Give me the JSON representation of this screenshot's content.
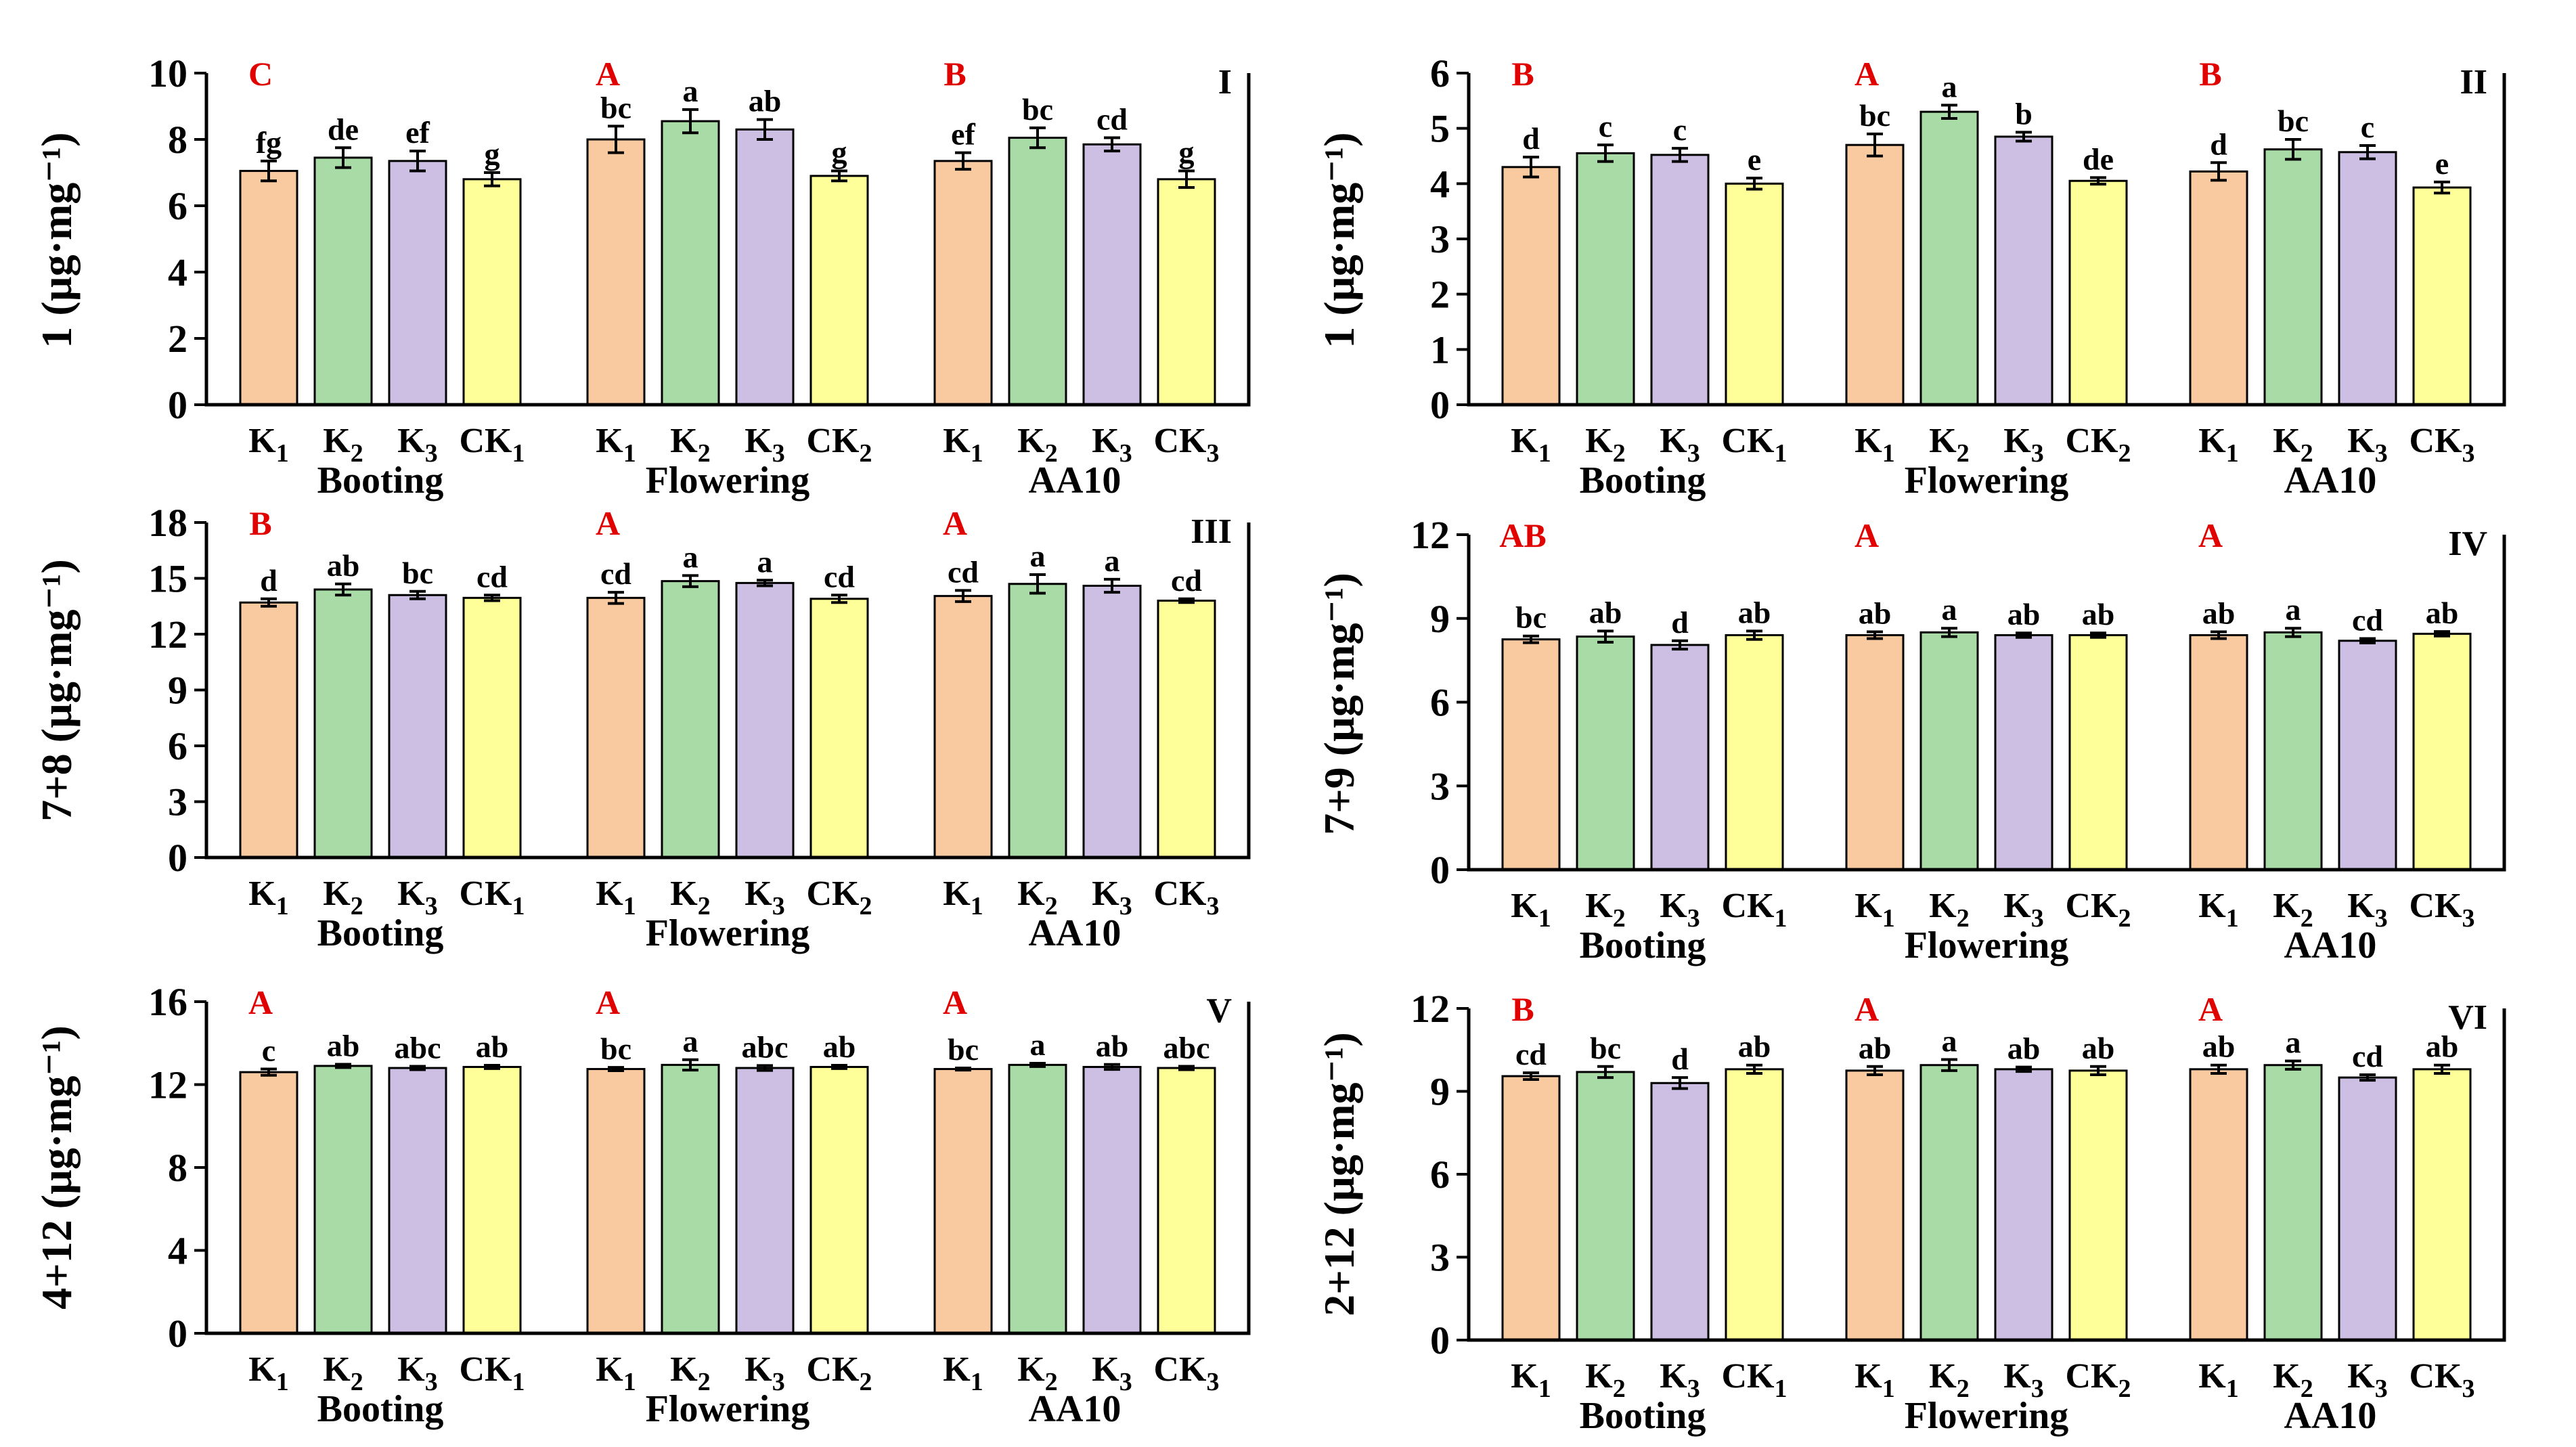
{
  "colors": {
    "K1": "#f9c9a0",
    "K2": "#a9dba6",
    "K3": "#cdbfe3",
    "CK": "#ffff99",
    "group_letter": "#e00000"
  },
  "chart_data": [
    {
      "type": "bar",
      "panel": "I",
      "ylabel": "1 (µg·mg⁻¹)",
      "ylim": [
        0,
        10
      ],
      "yticks": [
        "0",
        "2",
        "4",
        "6",
        "8",
        "10"
      ],
      "stages": [
        {
          "name": "Booting",
          "group_letter": "C",
          "categories": [
            "K1",
            "K2",
            "K3",
            "CK1"
          ],
          "labels": [
            "K₁",
            "K₂",
            "K₃",
            "CK₁"
          ],
          "values": [
            7.05,
            7.45,
            7.35,
            6.8
          ],
          "errors": [
            0.3,
            0.3,
            0.3,
            0.2
          ],
          "sig": [
            "fg",
            "de",
            "ef",
            "g"
          ]
        },
        {
          "name": "Flowering",
          "group_letter": "A",
          "categories": [
            "K1",
            "K2",
            "K3",
            "CK2"
          ],
          "labels": [
            "K₁",
            "K₂",
            "K₃",
            "CK₂"
          ],
          "values": [
            8.0,
            8.55,
            8.3,
            6.9
          ],
          "errors": [
            0.4,
            0.35,
            0.3,
            0.15
          ],
          "sig": [
            "bc",
            "a",
            "ab",
            "g"
          ]
        },
        {
          "name": "AA10",
          "group_letter": "B",
          "categories": [
            "K1",
            "K2",
            "K3",
            "CK3"
          ],
          "labels": [
            "K₁",
            "K₂",
            "K₃",
            "CK₃"
          ],
          "values": [
            7.35,
            8.05,
            7.85,
            6.8
          ],
          "errors": [
            0.25,
            0.3,
            0.2,
            0.25
          ],
          "sig": [
            "ef",
            "bc",
            "cd",
            "g"
          ]
        }
      ]
    },
    {
      "type": "bar",
      "panel": "II",
      "ylabel": "1 (µg·mg⁻¹)",
      "ylim": [
        0,
        6
      ],
      "yticks": [
        "0",
        "1",
        "2",
        "3",
        "4",
        "5",
        "6"
      ],
      "stages": [
        {
          "name": "Booting",
          "group_letter": "B",
          "categories": [
            "K1",
            "K2",
            "K3",
            "CK1"
          ],
          "labels": [
            "K₁",
            "K₂",
            "K₃",
            "CK₁"
          ],
          "values": [
            4.3,
            4.55,
            4.52,
            4.0
          ],
          "errors": [
            0.18,
            0.15,
            0.12,
            0.1
          ],
          "sig": [
            "d",
            "c",
            "c",
            "e"
          ]
        },
        {
          "name": "Flowering",
          "group_letter": "A",
          "categories": [
            "K1",
            "K2",
            "K3",
            "CK2"
          ],
          "labels": [
            "K₁",
            "K₂",
            "K₃",
            "CK₂"
          ],
          "values": [
            4.7,
            5.3,
            4.85,
            4.05
          ],
          "errors": [
            0.2,
            0.12,
            0.08,
            0.06
          ],
          "sig": [
            "bc",
            "a",
            "b",
            "de"
          ]
        },
        {
          "name": "AA10",
          "group_letter": "B",
          "categories": [
            "K1",
            "K2",
            "K3",
            "CK3"
          ],
          "labels": [
            "K₁",
            "K₂",
            "K₃",
            "CK₃"
          ],
          "values": [
            4.22,
            4.62,
            4.57,
            3.93
          ],
          "errors": [
            0.16,
            0.18,
            0.12,
            0.1
          ],
          "sig": [
            "d",
            "bc",
            "c",
            "e"
          ]
        }
      ]
    },
    {
      "type": "bar",
      "panel": "III",
      "ylabel": "7+8 (µg·mg⁻¹)",
      "ylim": [
        0,
        18
      ],
      "yticks": [
        "0",
        "3",
        "6",
        "9",
        "12",
        "15",
        "18"
      ],
      "stages": [
        {
          "name": "Booting",
          "group_letter": "B",
          "categories": [
            "K1",
            "K2",
            "K3",
            "CK1"
          ],
          "labels": [
            "K₁",
            "K₂",
            "K₃",
            "CK₁"
          ],
          "values": [
            13.7,
            14.4,
            14.1,
            13.95
          ],
          "errors": [
            0.2,
            0.3,
            0.2,
            0.15
          ],
          "sig": [
            "d",
            "ab",
            "bc",
            "cd"
          ]
        },
        {
          "name": "Flowering",
          "group_letter": "A",
          "categories": [
            "K1",
            "K2",
            "K3",
            "CK2"
          ],
          "labels": [
            "K₁",
            "K₂",
            "K₃",
            "CK₂"
          ],
          "values": [
            13.95,
            14.85,
            14.75,
            13.9
          ],
          "errors": [
            0.3,
            0.3,
            0.15,
            0.2
          ],
          "sig": [
            "cd",
            "a",
            "a",
            "cd"
          ]
        },
        {
          "name": "AA10",
          "group_letter": "A",
          "categories": [
            "K1",
            "K2",
            "K3",
            "CK3"
          ],
          "labels": [
            "K₁",
            "K₂",
            "K₃",
            "CK₃"
          ],
          "values": [
            14.05,
            14.7,
            14.6,
            13.8
          ],
          "errors": [
            0.3,
            0.5,
            0.35,
            0.1
          ],
          "sig": [
            "cd",
            "a",
            "a",
            "cd"
          ]
        }
      ]
    },
    {
      "type": "bar",
      "panel": "IV",
      "ylabel": "7+9 (µg·mg⁻¹)",
      "ylim": [
        0,
        12
      ],
      "yticks": [
        "0",
        "3",
        "6",
        "9",
        "12"
      ],
      "stages": [
        {
          "name": "Booting",
          "group_letter": "AB",
          "categories": [
            "K1",
            "K2",
            "K3",
            "CK1"
          ],
          "labels": [
            "K₁",
            "K₂",
            "K₃",
            "CK₁"
          ],
          "values": [
            8.25,
            8.35,
            8.05,
            8.4
          ],
          "errors": [
            0.12,
            0.2,
            0.15,
            0.15
          ],
          "sig": [
            "bc",
            "ab",
            "d",
            "ab"
          ]
        },
        {
          "name": "Flowering",
          "group_letter": "A",
          "categories": [
            "K1",
            "K2",
            "K3",
            "CK2"
          ],
          "labels": [
            "K₁",
            "K₂",
            "K₃",
            "CK₂"
          ],
          "values": [
            8.4,
            8.5,
            8.4,
            8.4
          ],
          "errors": [
            0.12,
            0.15,
            0.08,
            0.08
          ],
          "sig": [
            "ab",
            "a",
            "ab",
            "ab"
          ]
        },
        {
          "name": "AA10",
          "group_letter": "A",
          "categories": [
            "K1",
            "K2",
            "K3",
            "CK3"
          ],
          "labels": [
            "K₁",
            "K₂",
            "K₃",
            "CK₃"
          ],
          "values": [
            8.4,
            8.5,
            8.2,
            8.45
          ],
          "errors": [
            0.12,
            0.15,
            0.08,
            0.08
          ],
          "sig": [
            "ab",
            "a",
            "cd",
            "ab"
          ]
        }
      ]
    },
    {
      "type": "bar",
      "panel": "V",
      "ylabel": "4+12 (µg·mg⁻¹)",
      "ylim": [
        0,
        16
      ],
      "yticks": [
        "0",
        "4",
        "8",
        "12",
        "16"
      ],
      "stages": [
        {
          "name": "Booting",
          "group_letter": "A",
          "categories": [
            "K1",
            "K2",
            "K3",
            "CK1"
          ],
          "labels": [
            "K₁",
            "K₂",
            "K₃",
            "CK₁"
          ],
          "values": [
            12.6,
            12.9,
            12.8,
            12.85
          ],
          "errors": [
            0.15,
            0.08,
            0.08,
            0.08
          ],
          "sig": [
            "c",
            "ab",
            "abc",
            "ab"
          ]
        },
        {
          "name": "Flowering",
          "group_letter": "A",
          "categories": [
            "K1",
            "K2",
            "K3",
            "CK2"
          ],
          "labels": [
            "K₁",
            "K₂",
            "K₃",
            "CK₂"
          ],
          "values": [
            12.75,
            12.95,
            12.8,
            12.85
          ],
          "errors": [
            0.08,
            0.25,
            0.12,
            0.08
          ],
          "sig": [
            "bc",
            "a",
            "abc",
            "ab"
          ]
        },
        {
          "name": "AA10",
          "group_letter": "A",
          "categories": [
            "K1",
            "K2",
            "K3",
            "CK3"
          ],
          "labels": [
            "K₁",
            "K₂",
            "K₃",
            "CK₃"
          ],
          "values": [
            12.75,
            12.95,
            12.85,
            12.8
          ],
          "errors": [
            0.05,
            0.08,
            0.12,
            0.08
          ],
          "sig": [
            "bc",
            "a",
            "ab",
            "abc"
          ]
        }
      ]
    },
    {
      "type": "bar",
      "panel": "VI",
      "ylabel": "2+12 (µg·mg⁻¹)",
      "ylim": [
        0,
        12
      ],
      "yticks": [
        "0",
        "3",
        "6",
        "9",
        "12"
      ],
      "stages": [
        {
          "name": "Booting",
          "group_letter": "B",
          "categories": [
            "K1",
            "K2",
            "K3",
            "CK1"
          ],
          "labels": [
            "K₁",
            "K₂",
            "K₃",
            "CK₁"
          ],
          "values": [
            9.55,
            9.7,
            9.3,
            9.8
          ],
          "errors": [
            0.12,
            0.2,
            0.2,
            0.15
          ],
          "sig": [
            "cd",
            "bc",
            "d",
            "ab"
          ]
        },
        {
          "name": "Flowering",
          "group_letter": "A",
          "categories": [
            "K1",
            "K2",
            "K3",
            "CK2"
          ],
          "labels": [
            "K₁",
            "K₂",
            "K₃",
            "CK₂"
          ],
          "values": [
            9.75,
            9.95,
            9.8,
            9.75
          ],
          "errors": [
            0.15,
            0.2,
            0.08,
            0.15
          ],
          "sig": [
            "ab",
            "a",
            "ab",
            "ab"
          ]
        },
        {
          "name": "AA10",
          "group_letter": "A",
          "categories": [
            "K1",
            "K2",
            "K3",
            "CK3"
          ],
          "labels": [
            "K₁",
            "K₂",
            "K₃",
            "CK₃"
          ],
          "values": [
            9.8,
            9.95,
            9.5,
            9.8
          ],
          "errors": [
            0.15,
            0.15,
            0.1,
            0.15
          ],
          "sig": [
            "ab",
            "a",
            "cd",
            "ab"
          ]
        }
      ]
    }
  ]
}
